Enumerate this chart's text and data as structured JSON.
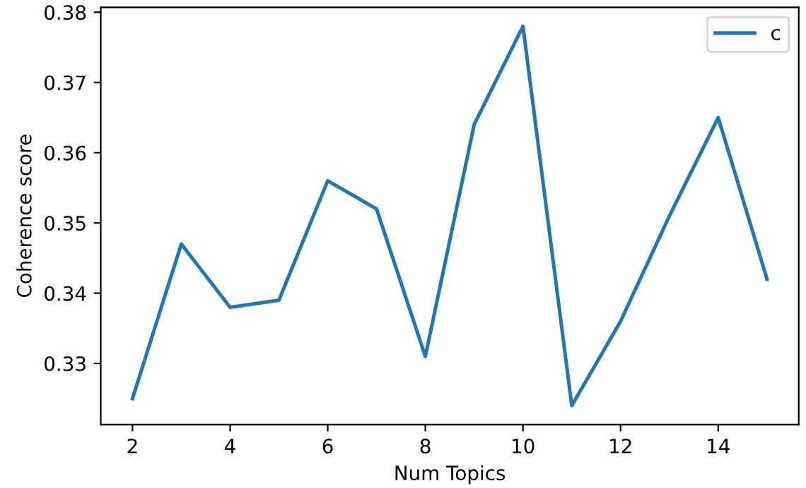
{
  "chart_data": {
    "type": "line",
    "xlabel": "Num Topics",
    "ylabel": "Coherence score",
    "x": [
      2,
      3,
      4,
      5,
      6,
      7,
      8,
      9,
      10,
      11,
      12,
      13,
      14,
      15
    ],
    "series": [
      {
        "name": "c",
        "color": "#1f77b4",
        "values": [
          0.325,
          0.347,
          0.338,
          0.339,
          0.356,
          0.352,
          0.331,
          0.364,
          0.378,
          0.324,
          0.336,
          0.351,
          0.365,
          0.342
        ]
      }
    ],
    "xlim": [
      1.35,
      15.65
    ],
    "ylim": [
      0.3213,
      0.3807
    ],
    "xticks": [
      2,
      4,
      6,
      8,
      10,
      12,
      14
    ],
    "yticks": [
      0.33,
      0.34,
      0.35,
      0.36,
      0.37,
      0.38
    ],
    "legend": "top right",
    "grid": false
  }
}
